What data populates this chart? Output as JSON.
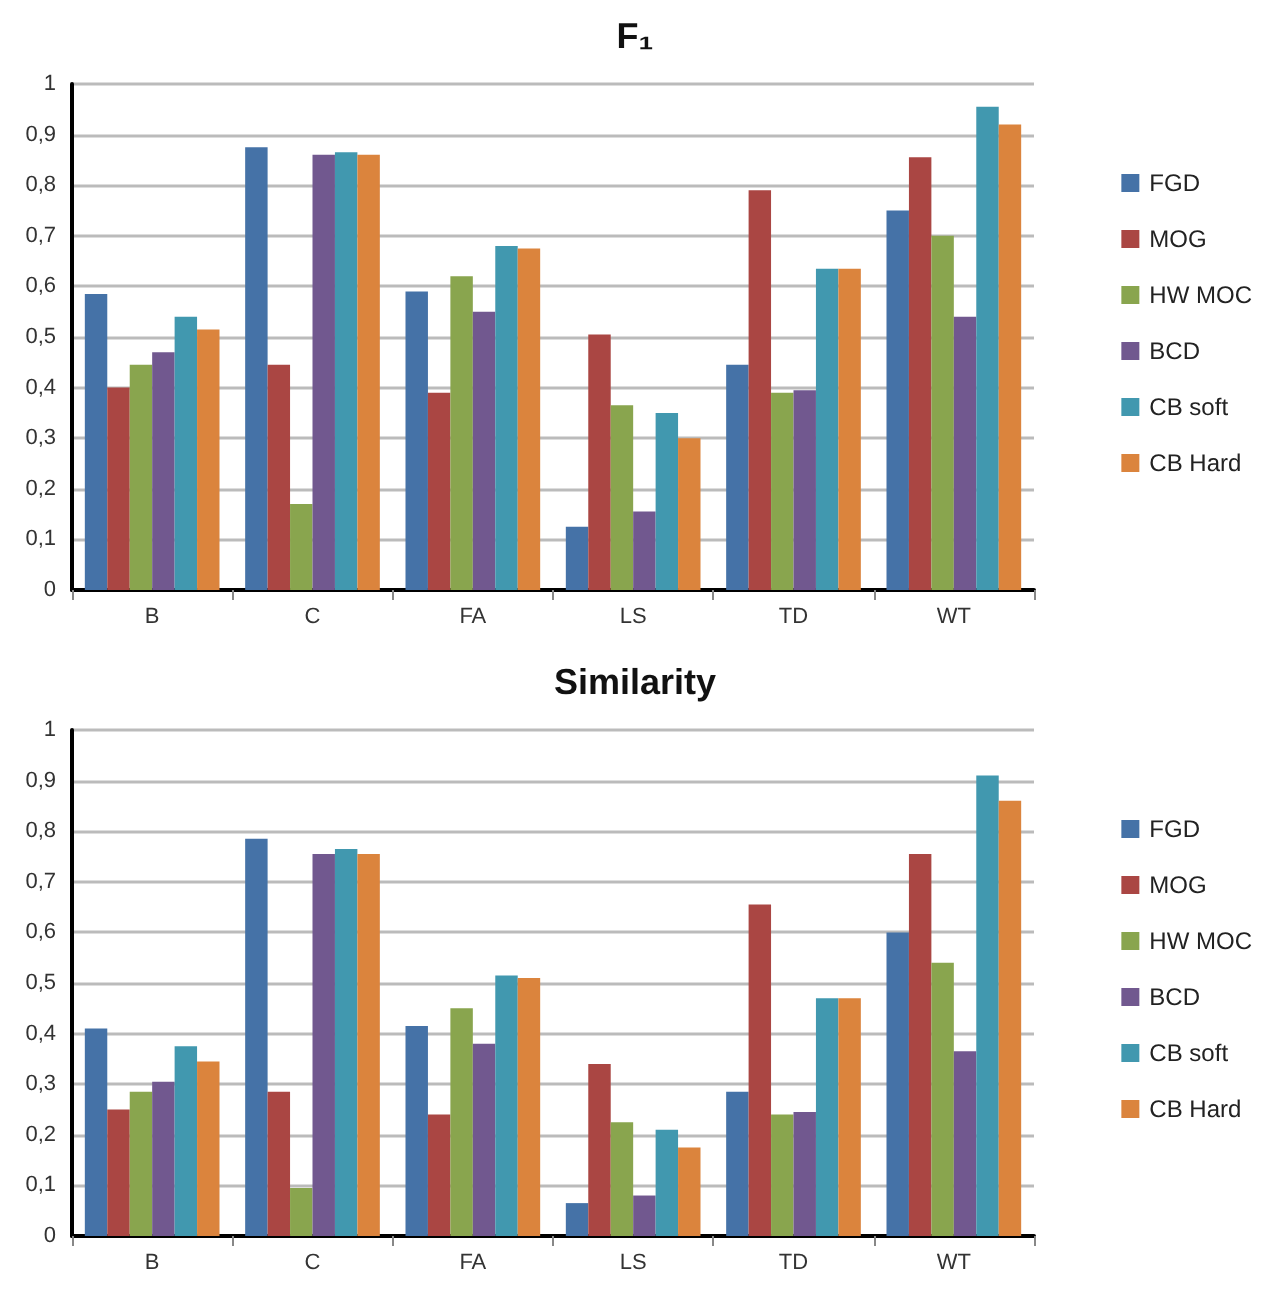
{
  "chart_data": [
    {
      "type": "bar",
      "title": "F₁",
      "categories": [
        "B",
        "C",
        "FA",
        "LS",
        "TD",
        "WT"
      ],
      "series": [
        {
          "name": "FGD",
          "color": "#4572a7",
          "values": [
            0.585,
            0.875,
            0.59,
            0.125,
            0.445,
            0.75
          ]
        },
        {
          "name": "MOG",
          "color": "#aa4643",
          "values": [
            0.4,
            0.445,
            0.39,
            0.505,
            0.79,
            0.855
          ]
        },
        {
          "name": "HW MOC",
          "color": "#89a54e",
          "values": [
            0.445,
            0.17,
            0.62,
            0.365,
            0.39,
            0.7
          ]
        },
        {
          "name": "BCD",
          "color": "#71588f",
          "values": [
            0.47,
            0.86,
            0.55,
            0.155,
            0.395,
            0.54
          ]
        },
        {
          "name": "CB soft",
          "color": "#4198af",
          "values": [
            0.54,
            0.865,
            0.68,
            0.35,
            0.635,
            0.955
          ]
        },
        {
          "name": "CB Hard",
          "color": "#db843d",
          "values": [
            0.515,
            0.86,
            0.675,
            0.3,
            0.635,
            0.92
          ]
        }
      ],
      "ylim": [
        0,
        1
      ],
      "yticks": [
        {
          "value": 0,
          "label": "0"
        },
        {
          "value": 0.1,
          "label": "0,1"
        },
        {
          "value": 0.2,
          "label": "0,2"
        },
        {
          "value": 0.3,
          "label": "0,3"
        },
        {
          "value": 0.4,
          "label": "0,4"
        },
        {
          "value": 0.5,
          "label": "0,5"
        },
        {
          "value": 0.6,
          "label": "0,6"
        },
        {
          "value": 0.7,
          "label": "0,7"
        },
        {
          "value": 0.8,
          "label": "0,8"
        },
        {
          "value": 0.9,
          "label": "0,9"
        },
        {
          "value": 1,
          "label": "1"
        }
      ],
      "grid": "y",
      "legend": "right"
    },
    {
      "type": "bar",
      "title": "Similarity",
      "categories": [
        "B",
        "C",
        "FA",
        "LS",
        "TD",
        "WT"
      ],
      "series": [
        {
          "name": "FGD",
          "color": "#4572a7",
          "values": [
            0.41,
            0.785,
            0.415,
            0.065,
            0.285,
            0.6
          ]
        },
        {
          "name": "MOG",
          "color": "#aa4643",
          "values": [
            0.25,
            0.285,
            0.24,
            0.34,
            0.655,
            0.755
          ]
        },
        {
          "name": "HW MOC",
          "color": "#89a54e",
          "values": [
            0.285,
            0.095,
            0.45,
            0.225,
            0.24,
            0.54
          ]
        },
        {
          "name": "BCD",
          "color": "#71588f",
          "values": [
            0.305,
            0.755,
            0.38,
            0.08,
            0.245,
            0.365
          ]
        },
        {
          "name": "CB soft",
          "color": "#4198af",
          "values": [
            0.375,
            0.765,
            0.515,
            0.21,
            0.47,
            0.91
          ]
        },
        {
          "name": "CB Hard",
          "color": "#db843d",
          "values": [
            0.345,
            0.755,
            0.51,
            0.175,
            0.47,
            0.86
          ]
        }
      ],
      "ylim": [
        0,
        1
      ],
      "yticks": [
        {
          "value": 0,
          "label": "0"
        },
        {
          "value": 0.1,
          "label": "0,1"
        },
        {
          "value": 0.2,
          "label": "0,2"
        },
        {
          "value": 0.3,
          "label": "0,3"
        },
        {
          "value": 0.4,
          "label": "0,4"
        },
        {
          "value": 0.5,
          "label": "0,5"
        },
        {
          "value": 0.6,
          "label": "0,6"
        },
        {
          "value": 0.7,
          "label": "0,7"
        },
        {
          "value": 0.8,
          "label": "0,8"
        },
        {
          "value": 0.9,
          "label": "0,9"
        },
        {
          "value": 1,
          "label": "1"
        }
      ],
      "grid": "y",
      "legend": "right"
    }
  ]
}
